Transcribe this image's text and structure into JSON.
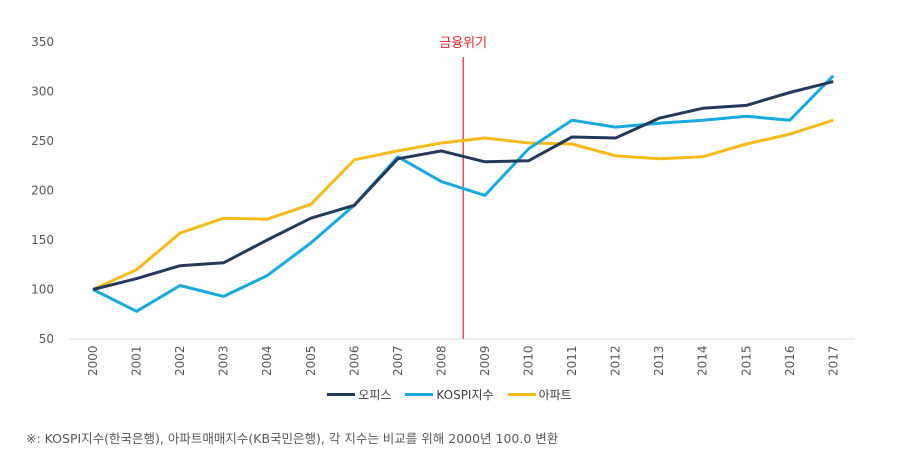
{
  "chart_data": {
    "type": "line",
    "title": "",
    "xlabel": "",
    "ylabel": "",
    "x": [
      "2000",
      "2001",
      "2002",
      "2003",
      "2004",
      "2005",
      "2006",
      "2007",
      "2008",
      "2009",
      "2010",
      "2011",
      "2012",
      "2013",
      "2014",
      "2015",
      "2016",
      "2017"
    ],
    "ylim": [
      50,
      350
    ],
    "yticks": [
      50,
      100,
      150,
      200,
      250,
      300,
      350
    ],
    "grid": false,
    "legend_position": "bottom-center",
    "series": [
      {
        "name": "오피스",
        "color": "#243a5a",
        "values": [
          100,
          111,
          124,
          127,
          150,
          172,
          185,
          232,
          240,
          229,
          230,
          254,
          253,
          273,
          283,
          286,
          299,
          310
        ]
      },
      {
        "name": "KOSPI지수",
        "color": "#17aadf",
        "values": [
          100,
          78,
          104,
          93,
          114,
          147,
          185,
          234,
          209,
          195,
          242,
          271,
          264,
          268,
          271,
          275,
          271,
          316
        ]
      },
      {
        "name": "아파트",
        "color": "#f6bb1a",
        "values": [
          100,
          120,
          157,
          172,
          171,
          186,
          231,
          240,
          248,
          253,
          248,
          247,
          235,
          232,
          234,
          247,
          257,
          271
        ]
      }
    ],
    "annotations": [
      {
        "text": "금융위기",
        "type": "vertical-line",
        "x_between": [
          "2008",
          "2009"
        ],
        "color": "#e8202a"
      }
    ]
  },
  "footnote": "※: KOSPI지수(한국은행), 아파트매매지수(KB국민은행), 각 지수는 비교를 위해 2000년 100.0 변환"
}
